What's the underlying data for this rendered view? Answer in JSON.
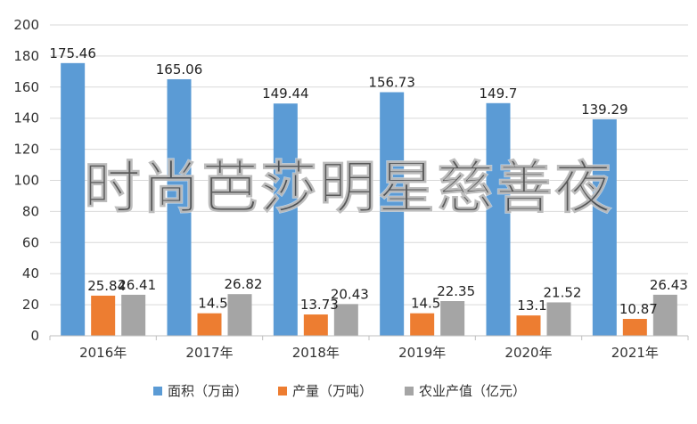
{
  "chart_data": {
    "type": "bar",
    "categories": [
      "2016年",
      "2017年",
      "2018年",
      "2019年",
      "2020年",
      "2021年"
    ],
    "series": [
      {
        "name": "面积（万亩）",
        "values": [
          175.46,
          165.06,
          149.44,
          156.73,
          149.7,
          139.29
        ],
        "labels": [
          "175.46",
          "165.06",
          "149.44",
          "156.73",
          "149.7",
          "139.29"
        ],
        "color": "#5b9bd5"
      },
      {
        "name": "产量（万吨）",
        "values": [
          25.84,
          14.5,
          13.73,
          14.5,
          13.1,
          10.87
        ],
        "labels": [
          "25.84",
          "14.5",
          "13.73",
          "14.5",
          "13.1",
          "10.87"
        ],
        "color": "#ed7d31"
      },
      {
        "name": "农业产值（亿元）",
        "values": [
          26.41,
          26.82,
          20.43,
          22.35,
          21.52,
          26.43
        ],
        "labels": [
          "26.41",
          "26.82",
          "20.43",
          "22.35",
          "21.52",
          "26.43"
        ],
        "color": "#a5a5a5"
      }
    ],
    "ylim": [
      0,
      200
    ],
    "yticks": [
      0,
      20,
      40,
      60,
      80,
      100,
      120,
      140,
      160,
      180,
      200
    ],
    "grid": true,
    "legend": "bottom",
    "gridcolor": "#d9d9d9"
  },
  "watermark": {
    "text": "时尚芭莎明星慈善夜"
  }
}
